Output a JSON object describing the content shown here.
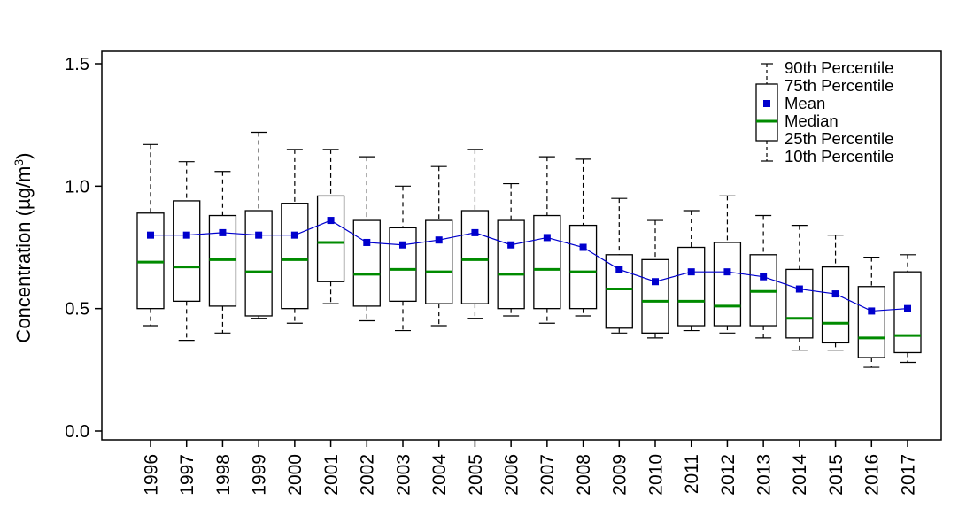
{
  "chart_data": {
    "type": "boxplot",
    "title": "",
    "xlabel": "",
    "ylabel": {
      "pre": "Concentration (µg/m",
      "sup": "3",
      "post": ")"
    },
    "ylim": [
      0,
      1.5
    ],
    "yticks": [
      0.0,
      0.5,
      1.0,
      1.5
    ],
    "ytick_labels": [
      "0.0",
      "0.5",
      "1.0",
      "1.5"
    ],
    "grid": false,
    "legend_position": "top-right-inside",
    "categories": [
      "1996",
      "1997",
      "1998",
      "1999",
      "2000",
      "2001",
      "2002",
      "2003",
      "2004",
      "2005",
      "2006",
      "2007",
      "2008",
      "2009",
      "2010",
      "2011",
      "2012",
      "2013",
      "2014",
      "2015",
      "2016",
      "2017"
    ],
    "stats": {
      "p90": [
        1.17,
        1.1,
        1.06,
        1.22,
        1.15,
        1.15,
        1.12,
        1.0,
        1.08,
        1.15,
        1.01,
        1.12,
        1.11,
        0.95,
        0.86,
        0.9,
        0.96,
        0.88,
        0.84,
        0.8,
        0.71,
        0.72
      ],
      "p75": [
        0.89,
        0.94,
        0.88,
        0.9,
        0.93,
        0.96,
        0.86,
        0.83,
        0.86,
        0.9,
        0.86,
        0.88,
        0.84,
        0.72,
        0.7,
        0.75,
        0.77,
        0.72,
        0.66,
        0.67,
        0.59,
        0.65
      ],
      "mean": [
        0.8,
        0.8,
        0.81,
        0.8,
        0.8,
        0.86,
        0.77,
        0.76,
        0.78,
        0.81,
        0.76,
        0.79,
        0.75,
        0.66,
        0.61,
        0.65,
        0.65,
        0.63,
        0.58,
        0.56,
        0.49,
        0.5
      ],
      "median": [
        0.69,
        0.67,
        0.7,
        0.65,
        0.7,
        0.77,
        0.64,
        0.66,
        0.65,
        0.7,
        0.64,
        0.66,
        0.65,
        0.58,
        0.53,
        0.53,
        0.51,
        0.57,
        0.46,
        0.44,
        0.38,
        0.39
      ],
      "p25": [
        0.5,
        0.53,
        0.51,
        0.47,
        0.5,
        0.61,
        0.51,
        0.53,
        0.52,
        0.52,
        0.5,
        0.5,
        0.5,
        0.42,
        0.4,
        0.43,
        0.43,
        0.43,
        0.38,
        0.36,
        0.3,
        0.32
      ],
      "p10": [
        0.43,
        0.37,
        0.4,
        0.46,
        0.44,
        0.52,
        0.45,
        0.41,
        0.43,
        0.46,
        0.47,
        0.44,
        0.47,
        0.4,
        0.38,
        0.41,
        0.4,
        0.38,
        0.33,
        0.33,
        0.26,
        0.28
      ]
    },
    "legend": [
      "90th Percentile",
      "75th Percentile",
      "Mean",
      "Median",
      "25th Percentile",
      "10th Percentile"
    ],
    "colors": {
      "mean": "#0000CD",
      "median": "#008B00",
      "box_stroke": "#000000",
      "box_fill": "#ffffff",
      "background": "#ffffff"
    }
  }
}
